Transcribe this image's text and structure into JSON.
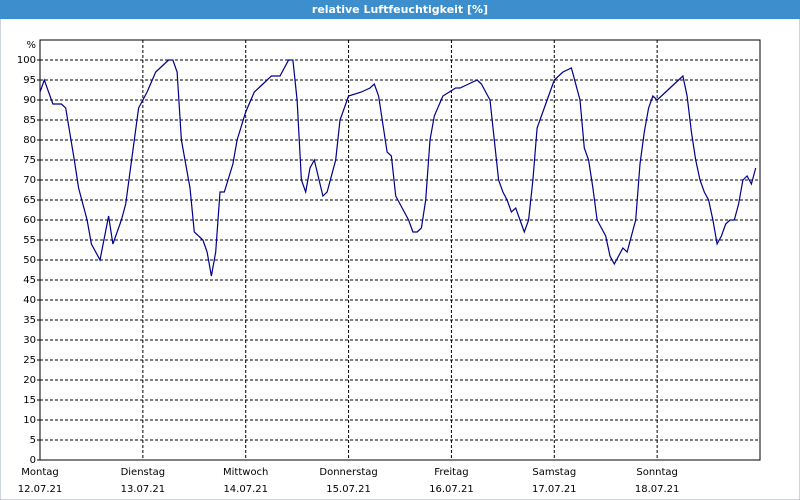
{
  "chart_data": {
    "type": "line",
    "title": "relative Luftfeuchtigkeit [%]",
    "y_label": "%",
    "xlim": [
      0,
      168
    ],
    "ylim": [
      0,
      105
    ],
    "grid": true,
    "yticks": [
      0,
      5,
      10,
      15,
      20,
      25,
      30,
      35,
      40,
      45,
      50,
      55,
      60,
      65,
      70,
      75,
      80,
      85,
      90,
      95,
      100
    ],
    "xticks": [
      {
        "value": 0,
        "label": "Montag",
        "date": "12.07.21"
      },
      {
        "value": 24,
        "label": "Dienstag",
        "date": "13.07.21"
      },
      {
        "value": 48,
        "label": "Mittwoch",
        "date": "14.07.21"
      },
      {
        "value": 72,
        "label": "Donnerstag",
        "date": "15.07.21"
      },
      {
        "value": 96,
        "label": "Freitag",
        "date": "16.07.21"
      },
      {
        "value": 120,
        "label": "Samstag",
        "date": "17.07.21"
      },
      {
        "value": 144,
        "label": "Sonntag",
        "date": "18.07.21"
      }
    ],
    "x": [
      0,
      1,
      3,
      5,
      6,
      8,
      9,
      11,
      12,
      14,
      16,
      17,
      19,
      20,
      22,
      23,
      25,
      27,
      30,
      31,
      32,
      33,
      35,
      36,
      38,
      39,
      40,
      41,
      42,
      43,
      45,
      46,
      48,
      50,
      52,
      54,
      56,
      58,
      59,
      60,
      61,
      62,
      63,
      64,
      66,
      67,
      69,
      70,
      72,
      75,
      77,
      78,
      79,
      81,
      82,
      83,
      85,
      86,
      87,
      88,
      89,
      90,
      91,
      92,
      94,
      97,
      98,
      100,
      102,
      103,
      105,
      106,
      107,
      108,
      109,
      110,
      111,
      112,
      113,
      114,
      115,
      116,
      117,
      119,
      120,
      122,
      124,
      126,
      127,
      128,
      129,
      130,
      132,
      133,
      134,
      135,
      136,
      137,
      139,
      140,
      141,
      142,
      143,
      144,
      146,
      147,
      149,
      150,
      151,
      152,
      153,
      154,
      155,
      156,
      157,
      158,
      159,
      160,
      161,
      162,
      163,
      164,
      165,
      166,
      167
    ],
    "series": [
      {
        "name": "relative Luftfeuchtigkeit",
        "color": "#00008b",
        "values": [
          92,
          95,
          89,
          89,
          88,
          75,
          68,
          60,
          54,
          50,
          61,
          54,
          60,
          64,
          80,
          88,
          92,
          97,
          100,
          100,
          97,
          80,
          68,
          57,
          55,
          52,
          46,
          52,
          67,
          67,
          74,
          80,
          87,
          92,
          94,
          96,
          96,
          100,
          100,
          90,
          70,
          67,
          73,
          75,
          66,
          67,
          75,
          85,
          91,
          92,
          93,
          94,
          91,
          77,
          76,
          66,
          62,
          60,
          57,
          57,
          58,
          65,
          80,
          86,
          91,
          93,
          93,
          94,
          95,
          94,
          90,
          80,
          70,
          67,
          65,
          62,
          63,
          60,
          57,
          60,
          70,
          83,
          86,
          92,
          95,
          97,
          98,
          90,
          78,
          75,
          68,
          60,
          56,
          51,
          49,
          51,
          53,
          52,
          60,
          74,
          82,
          88,
          91,
          90,
          92,
          93,
          95,
          96,
          91,
          82,
          75,
          70,
          67,
          65,
          60,
          54,
          56,
          59,
          60,
          60,
          64,
          70,
          71,
          69,
          73
        ]
      }
    ]
  }
}
